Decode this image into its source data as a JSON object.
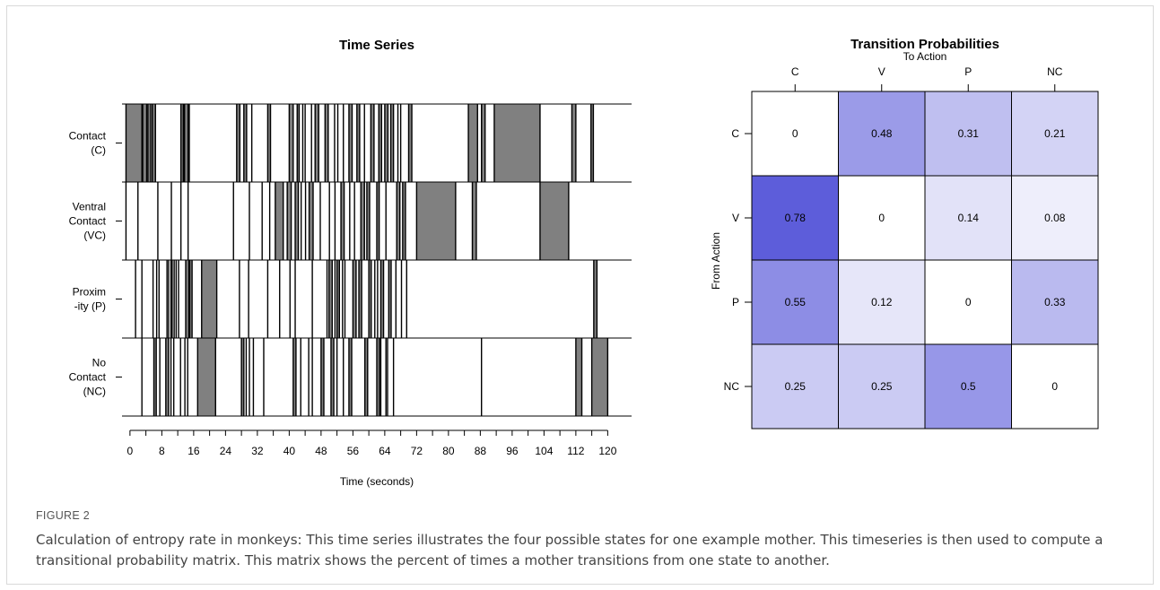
{
  "chart_data": [
    {
      "type": "timeline",
      "title": "Time Series",
      "xlabel": "Time (seconds)",
      "xlim": [
        -2,
        126
      ],
      "xticks": [
        0,
        8,
        16,
        24,
        32,
        40,
        48,
        56,
        64,
        72,
        80,
        88,
        96,
        104,
        112,
        120
      ],
      "states": [
        "Contact\n(C)",
        "Ventral\nContact\n(VC)",
        "Proxim\n-ity (P)",
        "No\nContact\n(NC)"
      ],
      "fill_color": "#808080",
      "intervals": [
        {
          "state": 0,
          "start": -1.0,
          "end": 3.0
        },
        {
          "state": 0,
          "start": 3.2,
          "end": 4.2
        },
        {
          "state": 0,
          "start": 4.5,
          "end": 5.2
        },
        {
          "state": 0,
          "start": 5.6,
          "end": 6.4
        },
        {
          "state": 0,
          "start": 12.8,
          "end": 13.4
        },
        {
          "state": 0,
          "start": 13.7,
          "end": 14.6
        },
        {
          "state": 0,
          "start": 26.8,
          "end": 27.6
        },
        {
          "state": 0,
          "start": 28.6,
          "end": 29.3
        },
        {
          "state": 0,
          "start": 34.6,
          "end": 35.3
        },
        {
          "state": 0,
          "start": 40.0,
          "end": 41.0
        },
        {
          "state": 0,
          "start": 42.0,
          "end": 42.5
        },
        {
          "state": 0,
          "start": 46.5,
          "end": 47.4
        },
        {
          "state": 0,
          "start": 49.0,
          "end": 49.8
        },
        {
          "state": 0,
          "start": 55.0,
          "end": 55.8
        },
        {
          "state": 0,
          "start": 57.0,
          "end": 57.7
        },
        {
          "state": 0,
          "start": 60.5,
          "end": 61.3
        },
        {
          "state": 0,
          "start": 62.5,
          "end": 63.2
        },
        {
          "state": 0,
          "start": 64.0,
          "end": 64.8
        },
        {
          "state": 0,
          "start": 65.5,
          "end": 66.2
        },
        {
          "state": 0,
          "start": 70.0,
          "end": 70.8
        },
        {
          "state": 0,
          "start": 85.0,
          "end": 87.3
        },
        {
          "state": 0,
          "start": 88.3,
          "end": 89.2
        },
        {
          "state": 0,
          "start": 91.5,
          "end": 103.0
        },
        {
          "state": 0,
          "start": 111.0,
          "end": 112.0
        },
        {
          "state": 0,
          "start": 115.8,
          "end": 116.4
        },
        {
          "state": 1,
          "start": 36.5,
          "end": 38.5
        },
        {
          "state": 1,
          "start": 39.5,
          "end": 40.5
        },
        {
          "state": 1,
          "start": 41.5,
          "end": 42.3
        },
        {
          "state": 1,
          "start": 45.0,
          "end": 46.0
        },
        {
          "state": 1,
          "start": 53.0,
          "end": 53.8
        },
        {
          "state": 1,
          "start": 58.0,
          "end": 58.9
        },
        {
          "state": 1,
          "start": 59.5,
          "end": 60.2
        },
        {
          "state": 1,
          "start": 62.0,
          "end": 62.6
        },
        {
          "state": 1,
          "start": 67.0,
          "end": 67.8
        },
        {
          "state": 1,
          "start": 68.5,
          "end": 69.2
        },
        {
          "state": 1,
          "start": 72.0,
          "end": 81.8
        },
        {
          "state": 1,
          "start": 86.0,
          "end": 87.0
        },
        {
          "state": 1,
          "start": 103.0,
          "end": 110.2
        },
        {
          "state": 2,
          "start": 14.0,
          "end": 14.8
        },
        {
          "state": 2,
          "start": 15.0,
          "end": 15.6
        },
        {
          "state": 2,
          "start": 18.0,
          "end": 21.8
        },
        {
          "state": 2,
          "start": 50.0,
          "end": 50.8
        },
        {
          "state": 2,
          "start": 52.0,
          "end": 52.6
        },
        {
          "state": 2,
          "start": 56.0,
          "end": 56.8
        },
        {
          "state": 2,
          "start": 57.5,
          "end": 58.2
        },
        {
          "state": 2,
          "start": 60.0,
          "end": 60.6
        },
        {
          "state": 2,
          "start": 63.0,
          "end": 63.7
        },
        {
          "state": 2,
          "start": 65.0,
          "end": 65.6
        },
        {
          "state": 2,
          "start": 116.5,
          "end": 117.3
        },
        {
          "state": 3,
          "start": 6.0,
          "end": 6.6
        },
        {
          "state": 3,
          "start": 9.0,
          "end": 9.7
        },
        {
          "state": 3,
          "start": 17.0,
          "end": 21.5
        },
        {
          "state": 3,
          "start": 28.0,
          "end": 28.6
        },
        {
          "state": 3,
          "start": 41.0,
          "end": 41.7
        },
        {
          "state": 3,
          "start": 48.0,
          "end": 48.7
        },
        {
          "state": 3,
          "start": 50.5,
          "end": 51.2
        },
        {
          "state": 3,
          "start": 55.0,
          "end": 55.7
        },
        {
          "state": 3,
          "start": 59.0,
          "end": 59.7
        },
        {
          "state": 3,
          "start": 62.0,
          "end": 62.7
        },
        {
          "state": 3,
          "start": 112.0,
          "end": 113.5
        },
        {
          "state": 3,
          "start": 116.0,
          "end": 120.0
        }
      ],
      "boundary_times": [
        [
          -1.0,
          3.0,
          3.2,
          4.2,
          4.5,
          5.2,
          5.6,
          6.4,
          12.8,
          13.4,
          13.7,
          14.6,
          14.9,
          26.8,
          27.6,
          28.6,
          29.3,
          30.6,
          34.6,
          35.3,
          40.0,
          41.0,
          42.0,
          42.5,
          43.4,
          44.0,
          45.6,
          46.5,
          47.4,
          49.0,
          49.8,
          51.4,
          52.2,
          53.6,
          55.0,
          55.8,
          57.0,
          57.7,
          58.9,
          60.5,
          61.3,
          62.5,
          63.2,
          64.0,
          64.8,
          65.5,
          66.2,
          67.3,
          68.0,
          70.0,
          70.8,
          85.0,
          87.3,
          88.3,
          89.2,
          91.5,
          103.0,
          111.0,
          112.0,
          115.8,
          116.4
        ],
        [
          -1.0,
          2.0,
          7.0,
          10.4,
          12.8,
          14.6,
          26.0,
          30.0,
          33.2,
          35.1,
          36.5,
          38.5,
          39.5,
          40.5,
          41.5,
          42.3,
          43.0,
          44.1,
          45.0,
          46.0,
          47.8,
          50.1,
          51.5,
          53.0,
          53.8,
          55.2,
          56.4,
          58.0,
          58.9,
          59.5,
          60.2,
          62.0,
          62.6,
          64.3,
          67.0,
          67.8,
          68.5,
          69.2,
          72.0,
          81.8,
          86.0,
          87.0,
          103.0,
          110.2
        ],
        [
          1.4,
          3.0,
          5.8,
          6.7,
          7.3,
          9.3,
          9.7,
          10.3,
          10.6,
          11.1,
          11.6,
          12.2,
          14.0,
          14.8,
          15.0,
          15.6,
          18.0,
          21.8,
          27.5,
          29.8,
          34.6,
          37.6,
          40.2,
          41.5,
          45.8,
          49.5,
          50.0,
          50.8,
          51.5,
          52.0,
          52.6,
          53.4,
          54.0,
          56.0,
          56.8,
          57.5,
          58.2,
          60.0,
          60.6,
          61.5,
          62.2,
          63.0,
          63.7,
          65.0,
          65.6,
          66.8,
          68.2,
          69.5,
          116.5,
          117.3
        ],
        [
          3.0,
          6.0,
          6.6,
          7.5,
          9.0,
          9.7,
          10.3,
          11.0,
          12.7,
          13.8,
          14.5,
          17.0,
          21.5,
          28.0,
          28.6,
          29.2,
          30.0,
          31.0,
          33.6,
          41.0,
          41.7,
          42.9,
          44.9,
          45.8,
          48.0,
          48.7,
          50.5,
          51.2,
          52.0,
          53.6,
          55.0,
          55.7,
          59.0,
          59.7,
          62.0,
          62.7,
          63.0,
          64.3,
          64.7,
          66.2,
          88.3,
          112.0,
          113.5,
          116.0,
          120.0
        ]
      ]
    },
    {
      "type": "heatmap",
      "title": "Transition Probabilities",
      "xlabel": "To Action",
      "ylabel": "From Action",
      "columns": [
        "C",
        "V",
        "P",
        "NC"
      ],
      "rows": [
        "C",
        "V",
        "P",
        "NC"
      ],
      "values": [
        [
          0,
          0.48,
          0.31,
          0.21
        ],
        [
          0.78,
          0,
          0.14,
          0.08
        ],
        [
          0.55,
          0.12,
          0,
          0.33
        ],
        [
          0.25,
          0.25,
          0.5,
          0
        ]
      ],
      "labels": [
        [
          "0",
          "0.48",
          "0.31",
          "0.21"
        ],
        [
          "0.78",
          "0",
          "0.14",
          "0.08"
        ],
        [
          "0.55",
          "0.12",
          "0",
          "0.33"
        ],
        [
          "0.25",
          "0.25",
          "0.5",
          "0"
        ]
      ],
      "color_low": "#ffffff",
      "color_high": "#2f2fd0"
    }
  ],
  "figure": {
    "label": "FIGURE 2",
    "caption": "Calculation of entropy rate in monkeys: This time series illustrates the four possible states for one example mother. This timeseries is then used to compute a transitional probability matrix. This matrix shows the percent of times a mother transitions from one state to another."
  }
}
